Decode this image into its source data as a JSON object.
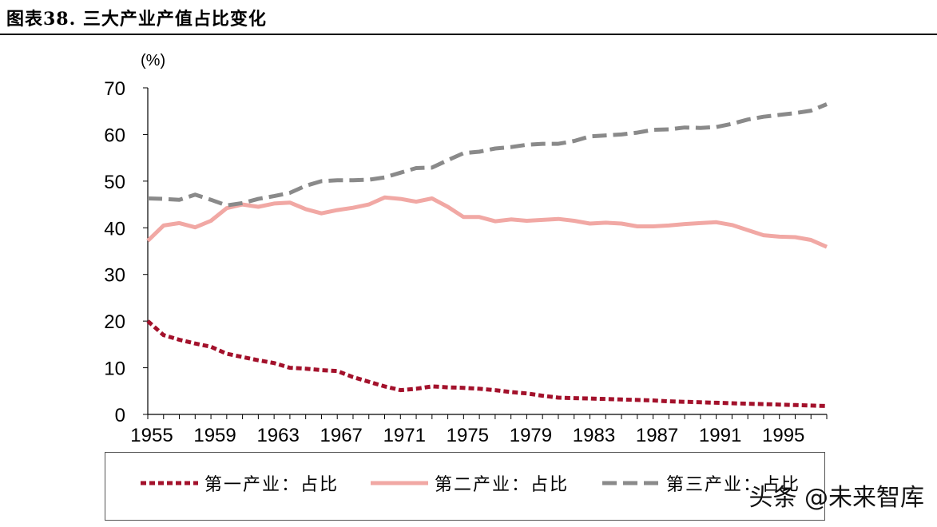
{
  "title": "图表38. 三大产业产值占比变化",
  "watermark": "头条 @未来智库",
  "chart_data": {
    "type": "line",
    "unit_label": "(%)",
    "ylim": [
      0,
      70
    ],
    "yticks": [
      0,
      10,
      20,
      30,
      40,
      50,
      60,
      70
    ],
    "xlim": [
      1955,
      1998
    ],
    "xticks": [
      1955,
      1959,
      1963,
      1967,
      1971,
      1975,
      1979,
      1983,
      1987,
      1991,
      1995
    ],
    "x": [
      1955,
      1956,
      1957,
      1958,
      1959,
      1960,
      1961,
      1962,
      1963,
      1964,
      1965,
      1966,
      1967,
      1968,
      1969,
      1970,
      1971,
      1972,
      1973,
      1974,
      1975,
      1976,
      1977,
      1978,
      1979,
      1980,
      1981,
      1982,
      1983,
      1984,
      1985,
      1986,
      1987,
      1988,
      1989,
      1990,
      1991,
      1992,
      1993,
      1994,
      1995,
      1996,
      1997,
      1998
    ],
    "series": [
      {
        "name": "第一产业：占比",
        "color": "#a3112b",
        "style": "dotted",
        "values": [
          20,
          17,
          16,
          15.2,
          14.5,
          13,
          12.3,
          11.6,
          11,
          10,
          9.8,
          9.5,
          9.3,
          8,
          7,
          6,
          5.2,
          5.5,
          6,
          5.8,
          5.7,
          5.5,
          5.2,
          4.8,
          4.5,
          4,
          3.6,
          3.5,
          3.4,
          3.3,
          3.2,
          3.1,
          3,
          2.8,
          2.7,
          2.6,
          2.5,
          2.4,
          2.3,
          2.2,
          2.1,
          2,
          1.9,
          1.8
        ]
      },
      {
        "name": "第二产业：占比",
        "color": "#f1a8a4",
        "style": "solid",
        "values": [
          37.2,
          40.5,
          41,
          40.1,
          41.5,
          44.2,
          45,
          44.5,
          45.2,
          45.4,
          44,
          43.1,
          43.8,
          44.3,
          45,
          46.5,
          46.2,
          45.6,
          46.3,
          44.5,
          42.3,
          42.3,
          41.4,
          41.8,
          41.5,
          41.7,
          41.9,
          41.5,
          40.9,
          41.1,
          40.9,
          40.3,
          40.3,
          40.5,
          40.8,
          41,
          41.2,
          40.6,
          39.5,
          38.4,
          38.1,
          38,
          37.4,
          35.9
        ]
      },
      {
        "name": "第三产业：占比",
        "color": "#8a8a8a",
        "style": "dashed",
        "values": [
          46.3,
          46.2,
          46,
          47.1,
          46,
          44.8,
          45.3,
          46.2,
          46.8,
          47.5,
          49,
          50,
          50.2,
          50.2,
          50.3,
          50.8,
          51.8,
          52.8,
          52.9,
          54.5,
          56,
          56.3,
          57,
          57.3,
          57.8,
          58,
          58,
          58.6,
          59.6,
          59.8,
          60,
          60.4,
          61,
          61.1,
          61.5,
          61.4,
          61.6,
          62.3,
          63.2,
          63.8,
          64.2,
          64.6,
          65.1,
          66.5
        ]
      }
    ]
  }
}
